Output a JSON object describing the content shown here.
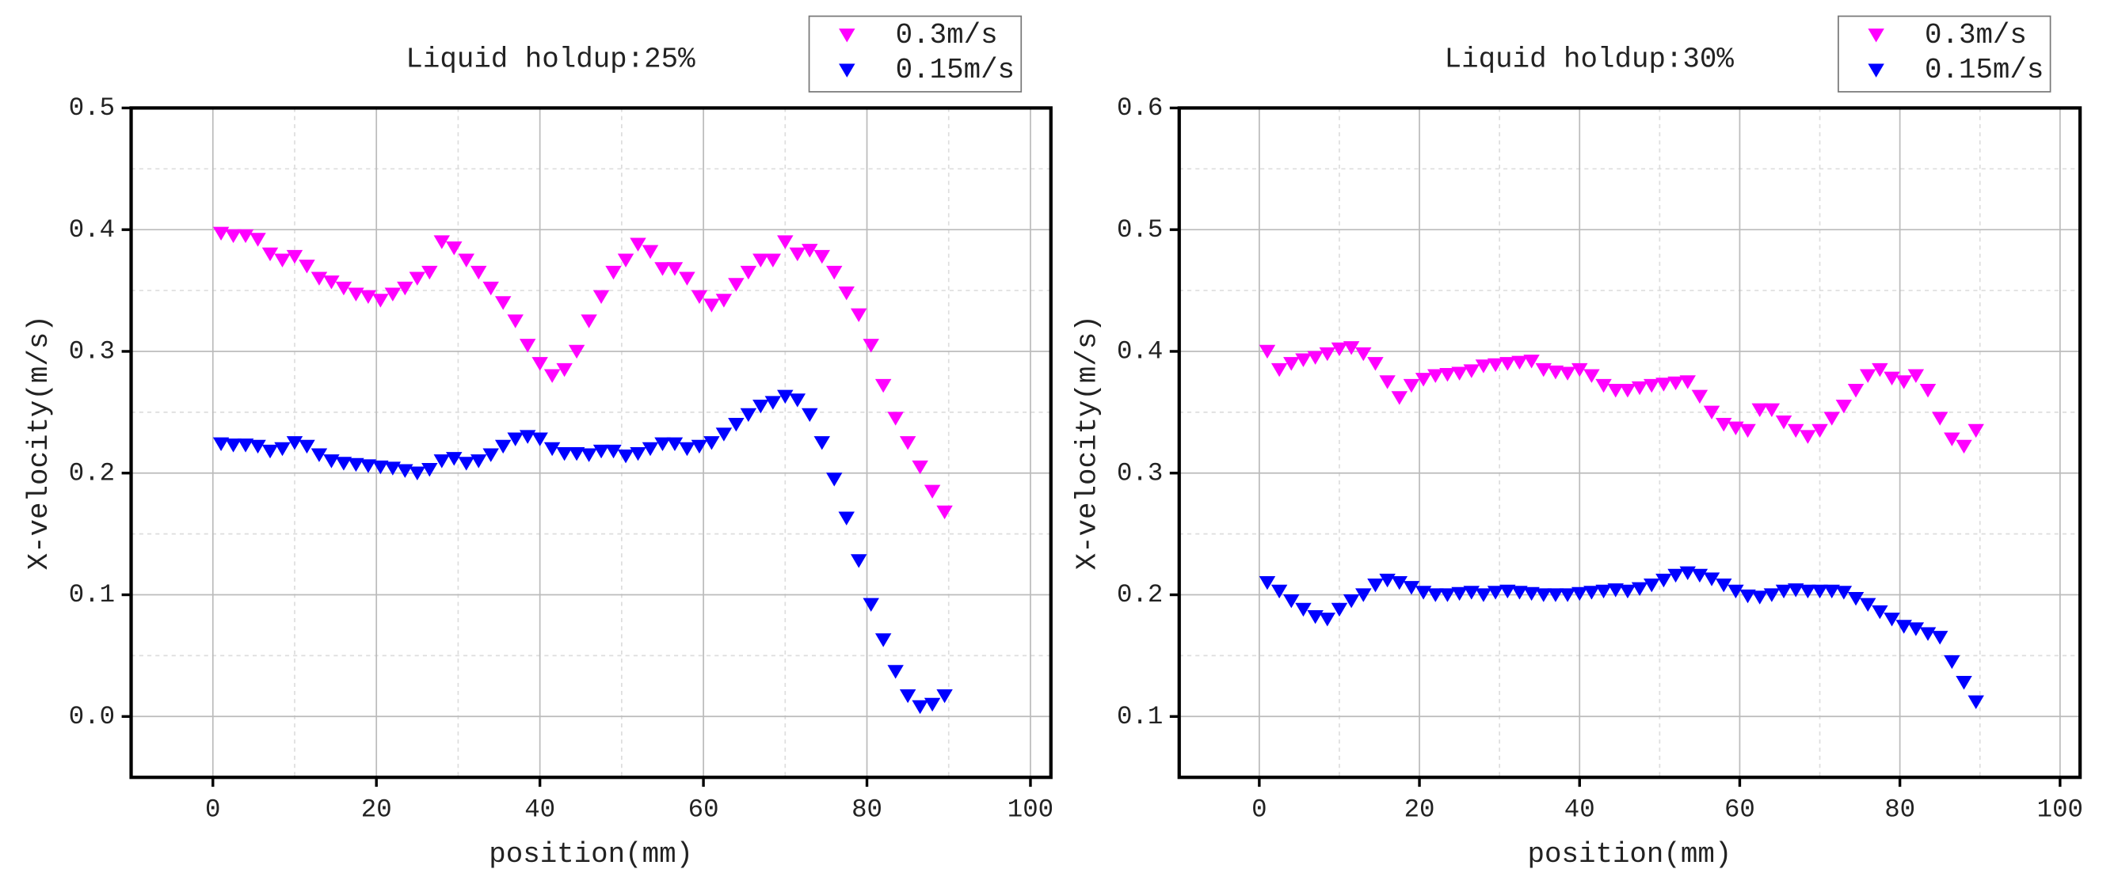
{
  "chart_data": [
    {
      "type": "scatter",
      "title": "Liquid holdup:25%",
      "xlabel": "position(mm)",
      "ylabel": "X-velocity(m/s)",
      "x": [
        1,
        2.5,
        4,
        5.5,
        7,
        8.5,
        10,
        11.5,
        13,
        14.5,
        16,
        17.5,
        19,
        20.5,
        22,
        23.5,
        25,
        26.5,
        28,
        29.5,
        31,
        32.5,
        34,
        35.5,
        37,
        38.5,
        40,
        41.5,
        43,
        44.5,
        46,
        47.5,
        49,
        50.5,
        52,
        53.5,
        55,
        56.5,
        58,
        59.5,
        61,
        62.5,
        64,
        65.5,
        67,
        68.5,
        70,
        71.5,
        73,
        74.5,
        76,
        77.5,
        79,
        80.5,
        82,
        83.5,
        85,
        86.5,
        88,
        89.5
      ],
      "series": [
        {
          "name": "0.3m/s",
          "color": "#ff00ff",
          "values": [
            0.397,
            0.395,
            0.395,
            0.392,
            0.38,
            0.375,
            0.378,
            0.37,
            0.36,
            0.357,
            0.352,
            0.347,
            0.345,
            0.342,
            0.347,
            0.352,
            0.36,
            0.365,
            0.39,
            0.385,
            0.375,
            0.365,
            0.352,
            0.34,
            0.325,
            0.305,
            0.29,
            0.28,
            0.285,
            0.3,
            0.325,
            0.345,
            0.365,
            0.375,
            0.388,
            0.382,
            0.368,
            0.368,
            0.36,
            0.345,
            0.338,
            0.342,
            0.355,
            0.365,
            0.375,
            0.375,
            0.39,
            0.38,
            0.383,
            0.378,
            0.365,
            0.348,
            0.33,
            0.305,
            0.272,
            0.245,
            0.225,
            0.205,
            0.185,
            0.168
          ]
        },
        {
          "name": "0.15m/s",
          "color": "#0000ff",
          "values": [
            0.224,
            0.223,
            0.223,
            0.222,
            0.218,
            0.22,
            0.225,
            0.222,
            0.215,
            0.21,
            0.208,
            0.207,
            0.206,
            0.205,
            0.204,
            0.202,
            0.2,
            0.203,
            0.21,
            0.212,
            0.208,
            0.21,
            0.215,
            0.222,
            0.228,
            0.23,
            0.228,
            0.22,
            0.216,
            0.216,
            0.215,
            0.218,
            0.218,
            0.214,
            0.216,
            0.22,
            0.224,
            0.224,
            0.22,
            0.222,
            0.225,
            0.232,
            0.24,
            0.248,
            0.255,
            0.258,
            0.263,
            0.26,
            0.248,
            0.225,
            0.195,
            0.163,
            0.128,
            0.092,
            0.063,
            0.037,
            0.017,
            0.008,
            0.01,
            0.017
          ]
        }
      ],
      "xlim": [
        -10,
        102.5
      ],
      "xticks": [
        0,
        20,
        40,
        60,
        80,
        100
      ],
      "ylim": [
        -0.05,
        0.5
      ],
      "yticks": [
        {
          "value": 0,
          "label": "0.0"
        },
        0.1,
        0.2,
        0.3,
        0.4,
        0.5
      ],
      "grid": true,
      "legend": "upper right"
    },
    {
      "type": "scatter",
      "title": "Liquid holdup:30%",
      "xlabel": "position(mm)",
      "ylabel": "X-velocity(m/s)",
      "x": [
        1,
        2.5,
        4,
        5.5,
        7,
        8.5,
        10,
        11.5,
        13,
        14.5,
        16,
        17.5,
        19,
        20.5,
        22,
        23.5,
        25,
        26.5,
        28,
        29.5,
        31,
        32.5,
        34,
        35.5,
        37,
        38.5,
        40,
        41.5,
        43,
        44.5,
        46,
        47.5,
        49,
        50.5,
        52,
        53.5,
        55,
        56.5,
        58,
        59.5,
        61,
        62.5,
        64,
        65.5,
        67,
        68.5,
        70,
        71.5,
        73,
        74.5,
        76,
        77.5,
        79,
        80.5,
        82,
        83.5,
        85,
        86.5,
        88,
        89.5
      ],
      "series": [
        {
          "name": "0.3m/s",
          "color": "#ff00ff",
          "values": [
            0.4,
            0.385,
            0.39,
            0.393,
            0.395,
            0.398,
            0.402,
            0.403,
            0.398,
            0.39,
            0.375,
            0.362,
            0.372,
            0.377,
            0.38,
            0.381,
            0.382,
            0.384,
            0.388,
            0.389,
            0.39,
            0.391,
            0.392,
            0.385,
            0.383,
            0.382,
            0.385,
            0.38,
            0.372,
            0.368,
            0.368,
            0.37,
            0.372,
            0.373,
            0.374,
            0.375,
            0.363,
            0.35,
            0.34,
            0.337,
            0.335,
            0.352,
            0.352,
            0.342,
            0.335,
            0.33,
            0.335,
            0.345,
            0.355,
            0.368,
            0.38,
            0.385,
            0.378,
            0.375,
            0.38,
            0.368,
            0.345,
            0.328,
            0.322,
            0.335
          ]
        },
        {
          "name": "0.15m/s",
          "color": "#0000ff",
          "values": [
            0.21,
            0.203,
            0.195,
            0.188,
            0.182,
            0.18,
            0.188,
            0.195,
            0.2,
            0.208,
            0.212,
            0.21,
            0.206,
            0.202,
            0.2,
            0.2,
            0.201,
            0.202,
            0.2,
            0.202,
            0.203,
            0.202,
            0.201,
            0.2,
            0.2,
            0.2,
            0.201,
            0.202,
            0.203,
            0.204,
            0.203,
            0.205,
            0.208,
            0.212,
            0.216,
            0.218,
            0.216,
            0.213,
            0.208,
            0.203,
            0.199,
            0.198,
            0.2,
            0.203,
            0.204,
            0.203,
            0.203,
            0.203,
            0.202,
            0.197,
            0.192,
            0.186,
            0.18,
            0.174,
            0.172,
            0.168,
            0.165,
            0.145,
            0.128,
            0.112
          ]
        }
      ],
      "xlim": [
        -10,
        102.5
      ],
      "xticks": [
        0,
        20,
        40,
        60,
        80,
        100
      ],
      "ylim": [
        0.05,
        0.6
      ],
      "yticks": [
        0.1,
        0.2,
        0.3,
        0.4,
        0.5,
        0.6
      ],
      "grid": true,
      "legend": "upper right"
    }
  ]
}
